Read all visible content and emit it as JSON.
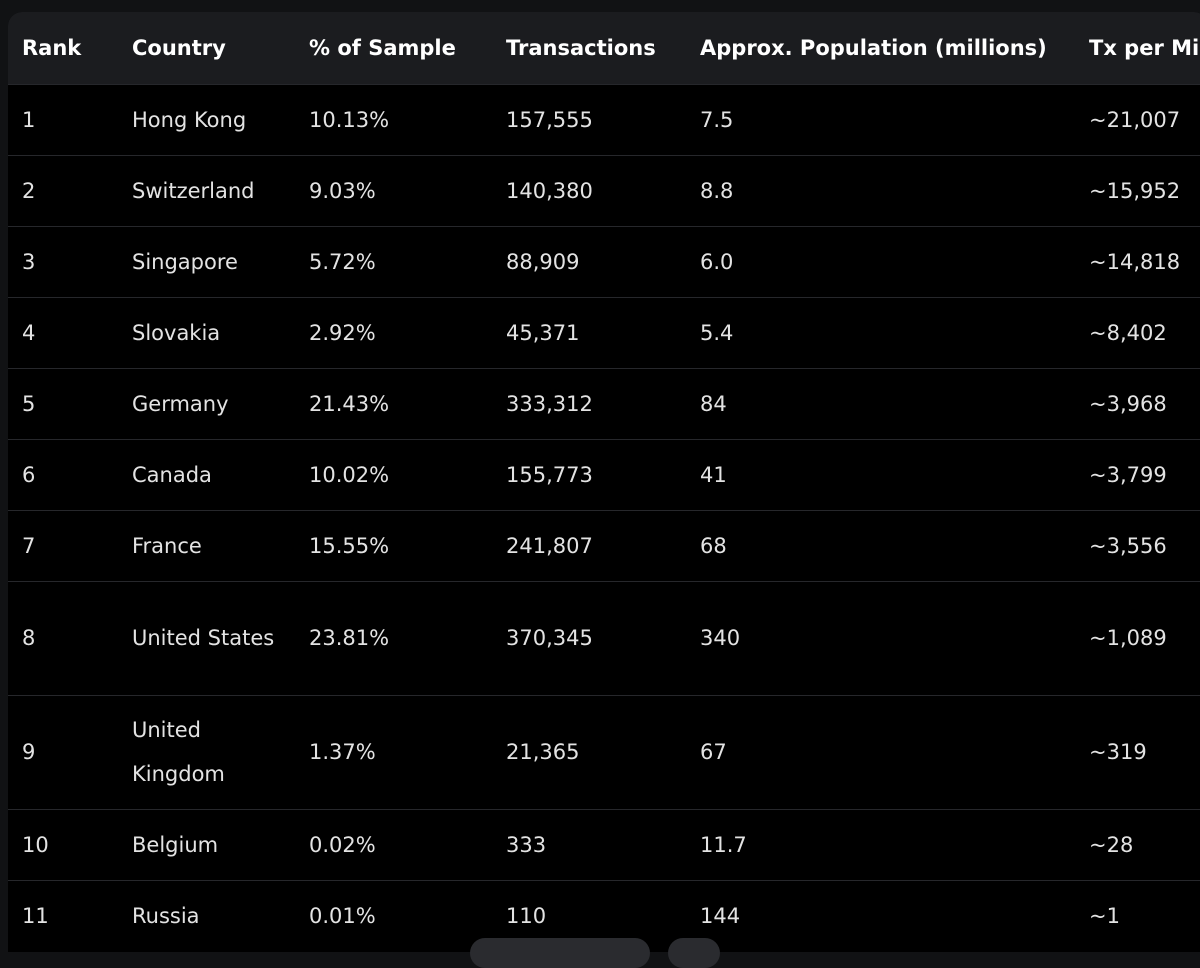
{
  "table": {
    "headers": {
      "rank": "Rank",
      "country": "Country",
      "pct": "% of Sample",
      "tx": "Transactions",
      "pop": "Approx. Population (millions)",
      "txm": "Tx per Mi"
    },
    "rows": [
      {
        "rank": "1",
        "country": "Hong Kong",
        "pct": "10.13%",
        "tx": "157,555",
        "pop": "7.5",
        "txm": "~21,007"
      },
      {
        "rank": "2",
        "country": "Switzerland",
        "pct": "9.03%",
        "tx": "140,380",
        "pop": "8.8",
        "txm": "~15,952"
      },
      {
        "rank": "3",
        "country": "Singapore",
        "pct": "5.72%",
        "tx": "88,909",
        "pop": "6.0",
        "txm": "~14,818"
      },
      {
        "rank": "4",
        "country": "Slovakia",
        "pct": "2.92%",
        "tx": "45,371",
        "pop": "5.4",
        "txm": "~8,402"
      },
      {
        "rank": "5",
        "country": "Germany",
        "pct": "21.43%",
        "tx": "333,312",
        "pop": "84",
        "txm": "~3,968"
      },
      {
        "rank": "6",
        "country": "Canada",
        "pct": "10.02%",
        "tx": "155,773",
        "pop": "41",
        "txm": "~3,799"
      },
      {
        "rank": "7",
        "country": "France",
        "pct": "15.55%",
        "tx": "241,807",
        "pop": "68",
        "txm": "~3,556"
      },
      {
        "rank": "8",
        "country": "United States",
        "pct": "23.81%",
        "tx": "370,345",
        "pop": "340",
        "txm": "~1,089"
      },
      {
        "rank": "9",
        "country": "United Kingdom",
        "pct": "1.37%",
        "tx": "21,365",
        "pop": "67",
        "txm": "~319"
      },
      {
        "rank": "10",
        "country": "Belgium",
        "pct": "0.02%",
        "tx": "333",
        "pop": "11.7",
        "txm": "~28"
      },
      {
        "rank": "11",
        "country": "Russia",
        "pct": "0.01%",
        "tx": "110",
        "pop": "144",
        "txm": "~1"
      }
    ]
  }
}
